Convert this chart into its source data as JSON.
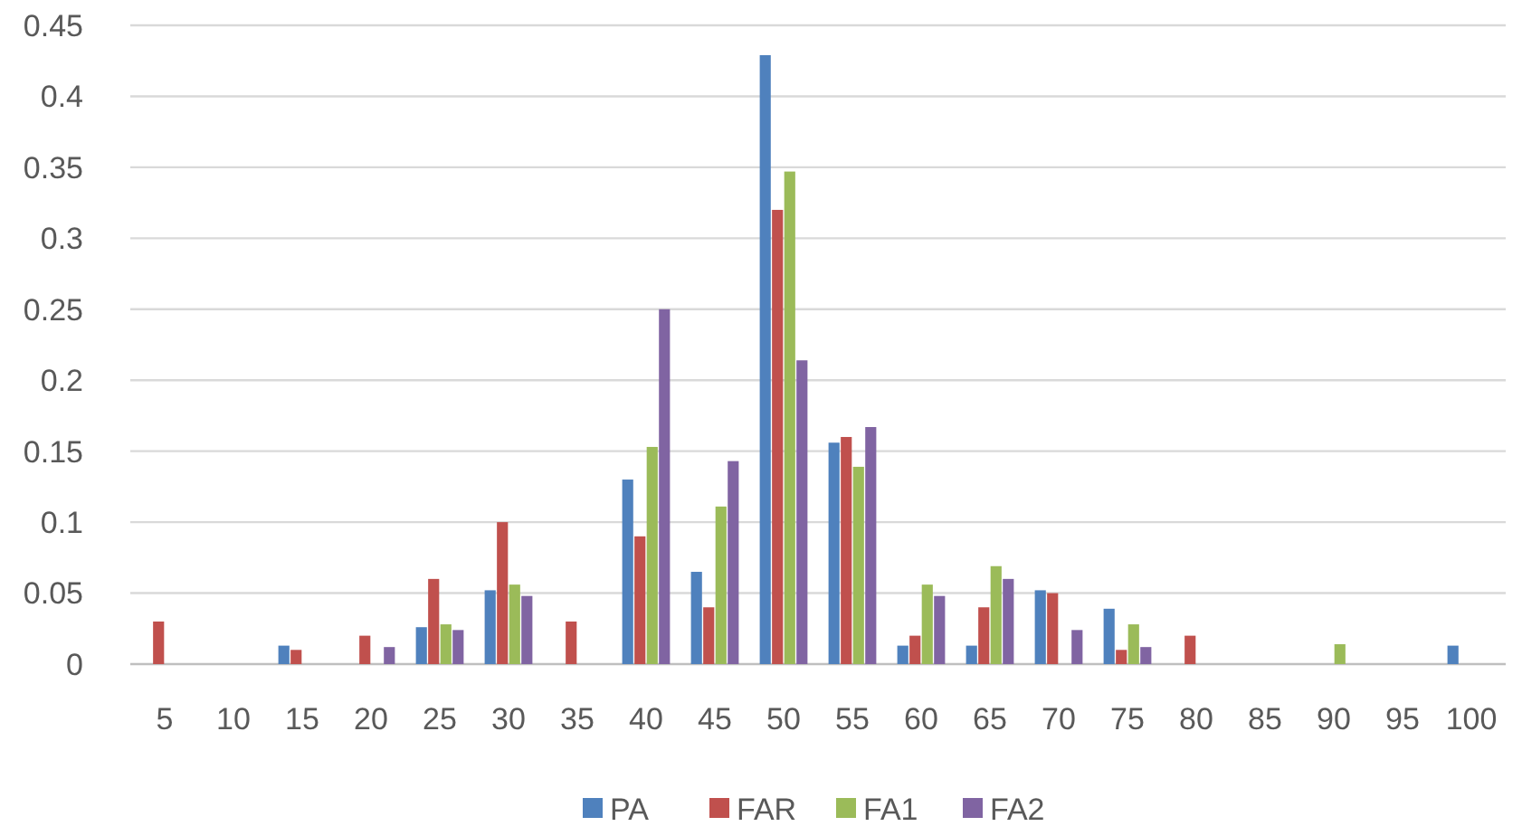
{
  "chart_data": {
    "type": "bar",
    "categories": [
      "5",
      "10",
      "15",
      "20",
      "25",
      "30",
      "35",
      "40",
      "45",
      "50",
      "55",
      "60",
      "65",
      "70",
      "75",
      "80",
      "85",
      "90",
      "95",
      "100"
    ],
    "series": [
      {
        "name": "PA",
        "color": "#4f81bd",
        "values": [
          0,
          0,
          0.013,
          0,
          0.026,
          0.052,
          0,
          0.13,
          0.065,
          0.429,
          0.156,
          0.013,
          0.013,
          0.052,
          0.039,
          0,
          0,
          0,
          0,
          0.013
        ]
      },
      {
        "name": "FAR",
        "color": "#c0504d",
        "values": [
          0.03,
          0,
          0.01,
          0.02,
          0.06,
          0.1,
          0.03,
          0.09,
          0.04,
          0.32,
          0.16,
          0.02,
          0.04,
          0.05,
          0.01,
          0.02,
          0,
          0,
          0,
          0
        ]
      },
      {
        "name": "FA1",
        "color": "#9bbb59",
        "values": [
          0,
          0,
          0,
          0,
          0.028,
          0.056,
          0,
          0.153,
          0.111,
          0.347,
          0.139,
          0.056,
          0.069,
          0,
          0.028,
          0,
          0,
          0.014,
          0,
          0
        ]
      },
      {
        "name": "FA2",
        "color": "#8064a2",
        "values": [
          0,
          0,
          0,
          0.012,
          0.024,
          0.048,
          0,
          0.25,
          0.143,
          0.214,
          0.167,
          0.048,
          0.06,
          0.024,
          0.012,
          0,
          0,
          0,
          0,
          0
        ]
      }
    ],
    "ylim": [
      0,
      0.45
    ],
    "yticks": [
      0,
      {
        "value": 0.05,
        "label": "0.05"
      },
      {
        "value": 0.1,
        "label": "0.1"
      },
      {
        "value": 0.15,
        "label": "0.15"
      },
      {
        "value": 0.2,
        "label": "0.2"
      },
      {
        "value": 0.25,
        "label": "0.25"
      },
      {
        "value": 0.3,
        "label": "0.3"
      },
      {
        "value": 0.35,
        "label": "0.35"
      },
      {
        "value": 0.4,
        "label": "0.4"
      },
      {
        "value": 0.45,
        "label": "0.45"
      }
    ],
    "grid": "y",
    "legend": "bottom"
  }
}
